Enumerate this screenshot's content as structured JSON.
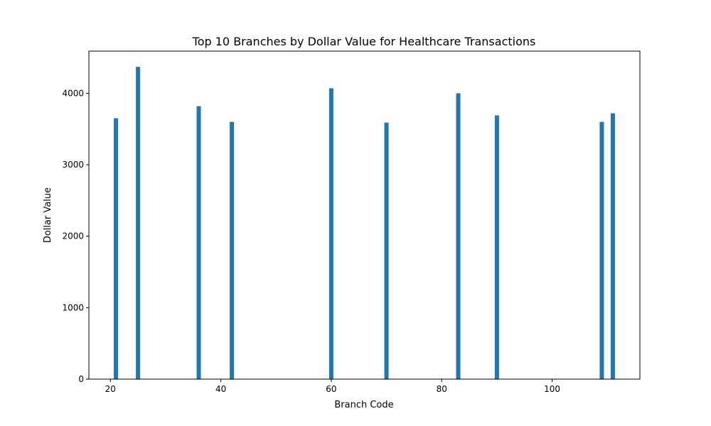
{
  "chart_data": {
    "type": "bar",
    "title": "Top 10 Branches by Dollar Value for Healthcare Transactions",
    "xlabel": "Branch Code",
    "ylabel": "Dollar Value",
    "x": [
      21,
      25,
      36,
      42,
      60,
      70,
      83,
      90,
      109,
      111
    ],
    "values": [
      3650,
      4370,
      3820,
      3600,
      4070,
      3590,
      4000,
      3690,
      3600,
      3720
    ],
    "xlim": [
      16.1,
      115.9
    ],
    "ylim": [
      0,
      4590
    ],
    "xticks": [
      20,
      40,
      60,
      80,
      100
    ],
    "yticks": [
      0,
      1000,
      2000,
      3000,
      4000
    ],
    "bar_color": "#1f77b4",
    "grid": false
  }
}
